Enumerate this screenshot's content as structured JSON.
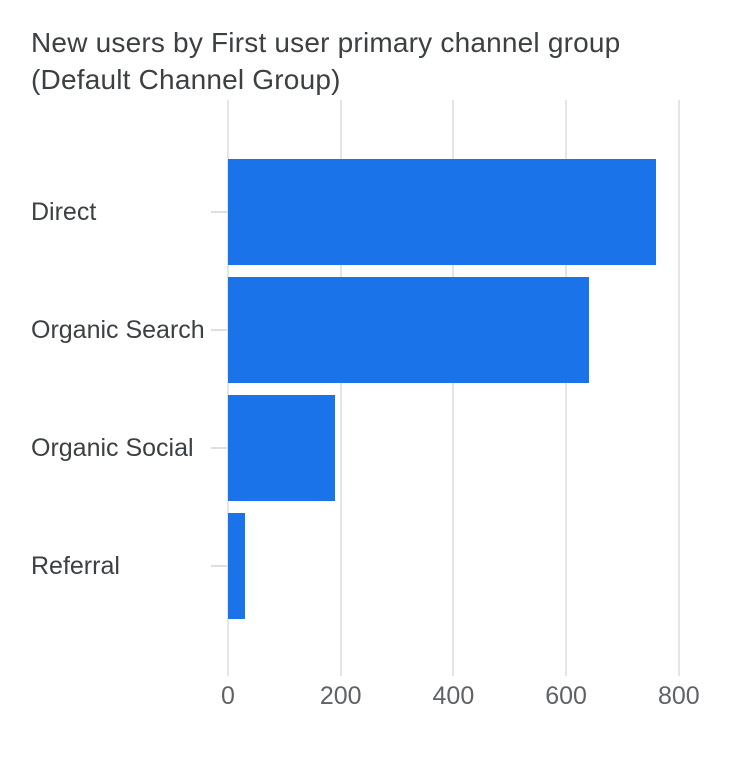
{
  "card": {
    "title": "New users by First user primary channel group (Default Channel Group)",
    "title_lines": [
      "New users by First user primary channel group",
      "(Default Channel Group)"
    ]
  },
  "chart_data": {
    "type": "bar",
    "orientation": "horizontal",
    "title": "New users by First user primary channel group (Default Channel Group)",
    "categories": [
      "Direct",
      "Organic Search",
      "Organic Social",
      "Referral"
    ],
    "values": [
      760,
      640,
      190,
      30
    ],
    "xlabel": "",
    "ylabel": "",
    "x_ticks": [
      0,
      200,
      400,
      600,
      800
    ],
    "xlim": [
      0,
      800
    ],
    "grid": true,
    "legend": false,
    "bar_color": "#1a73e8"
  },
  "colors": {
    "background": "#ffffff",
    "bar": "#1a73e8",
    "title_text": "#3c4043",
    "category_text": "#3c4043",
    "axis_text": "#5f6368",
    "gridline": "#e3e5e8"
  }
}
